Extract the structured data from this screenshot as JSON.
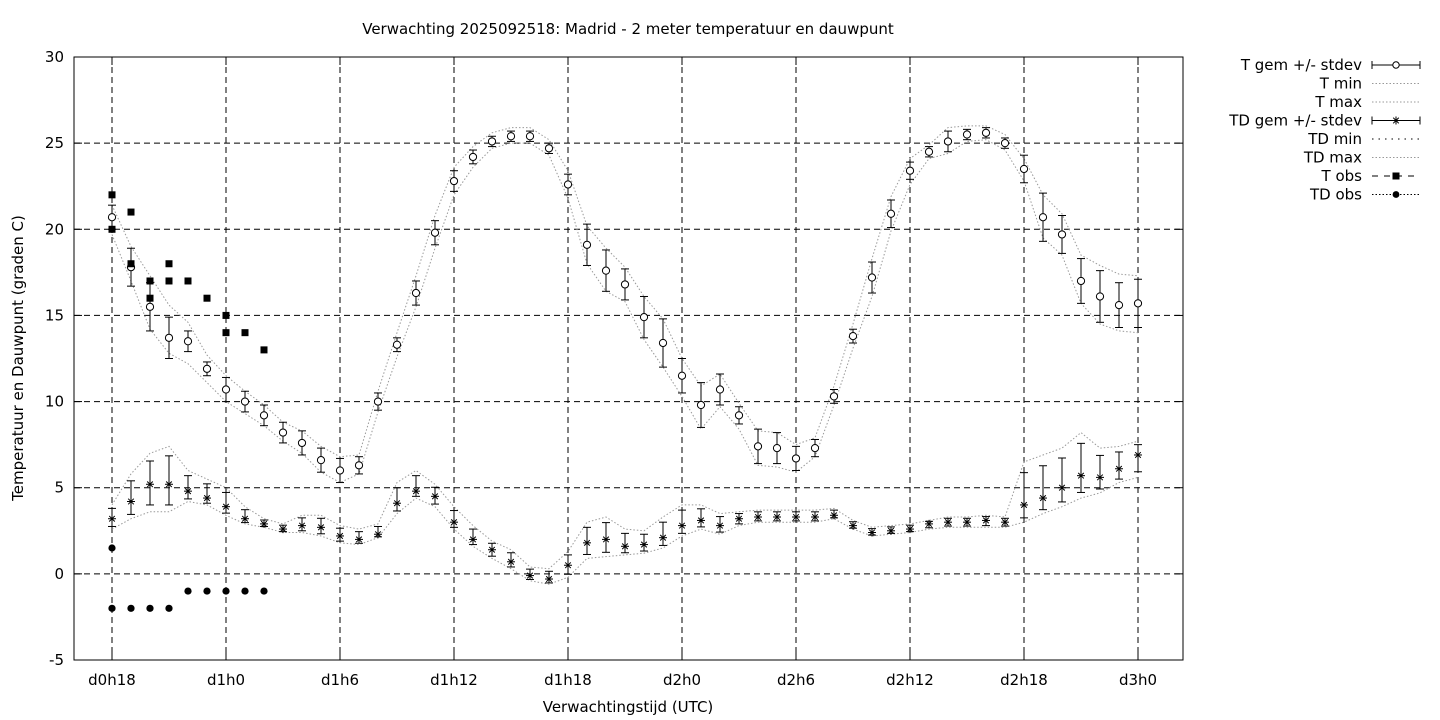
{
  "chart_data": {
    "type": "line",
    "title": "Verwachting 2025092518: Madrid - 2 meter temperatuur en dauwpunt",
    "xlabel": "Verwachtingstijd (UTC)",
    "ylabel": "Temperatuur en Dauwpunt (graden C)",
    "ylim": [
      -5,
      30
    ],
    "yticks": [
      -5,
      0,
      5,
      10,
      15,
      20,
      25,
      30
    ],
    "xlim": [
      0,
      56
    ],
    "xticks": [
      {
        "x": 0,
        "label": "d0h18"
      },
      {
        "x": 6,
        "label": "d1h0"
      },
      {
        "x": 12,
        "label": "d1h6"
      },
      {
        "x": 18,
        "label": "d1h12"
      },
      {
        "x": 24,
        "label": "d1h18"
      },
      {
        "x": 30,
        "label": "d2h0"
      },
      {
        "x": 36,
        "label": "d2h6"
      },
      {
        "x": 42,
        "label": "d2h12"
      },
      {
        "x": 48,
        "label": "d2h18"
      },
      {
        "x": 54,
        "label": "d3h0"
      }
    ],
    "grid": true,
    "legend_position": "outside-right-top",
    "x": [
      0,
      1,
      2,
      3,
      4,
      5,
      6,
      7,
      8,
      9,
      10,
      11,
      12,
      13,
      14,
      15,
      16,
      17,
      18,
      19,
      20,
      21,
      22,
      23,
      24,
      25,
      26,
      27,
      28,
      29,
      30,
      31,
      32,
      33,
      34,
      35,
      36,
      37,
      38,
      39,
      40,
      41,
      42,
      43,
      44,
      45,
      46,
      47,
      48,
      49,
      50,
      51,
      52,
      53,
      54
    ],
    "series": [
      {
        "name": "T gem +/- stdev",
        "marker": "circle",
        "values": [
          20.7,
          17.8,
          15.5,
          13.7,
          13.5,
          11.9,
          10.7,
          10.0,
          9.2,
          8.2,
          7.6,
          6.6,
          6.0,
          6.3,
          10.0,
          13.3,
          16.3,
          19.8,
          22.8,
          24.2,
          25.1,
          25.4,
          25.4,
          24.7,
          22.6,
          19.1,
          17.6,
          16.8,
          14.9,
          13.4,
          11.5,
          9.8,
          10.7,
          9.2,
          7.4,
          7.3,
          6.7,
          7.3,
          10.3,
          13.8,
          17.2,
          20.9,
          23.4,
          24.5,
          25.1,
          25.5,
          25.6,
          25.0,
          23.5,
          20.7,
          19.7,
          17.0,
          16.1,
          15.6,
          15.7
        ],
        "stdev": [
          0.7,
          1.1,
          1.4,
          1.2,
          0.6,
          0.4,
          0.7,
          0.6,
          0.6,
          0.6,
          0.7,
          0.7,
          0.7,
          0.5,
          0.5,
          0.4,
          0.7,
          0.7,
          0.6,
          0.4,
          0.3,
          0.3,
          0.3,
          0.3,
          0.6,
          1.2,
          1.2,
          0.9,
          1.2,
          1.4,
          1.0,
          1.3,
          0.9,
          0.5,
          1.0,
          0.9,
          0.7,
          0.5,
          0.4,
          0.4,
          0.9,
          0.8,
          0.5,
          0.3,
          0.6,
          0.3,
          0.3,
          0.3,
          0.8,
          1.4,
          1.1,
          1.3,
          1.5,
          1.3,
          1.4
        ]
      },
      {
        "name": "T min",
        "values": [
          19.7,
          17.0,
          14.2,
          12.8,
          12.2,
          11.1,
          10.0,
          9.3,
          8.6,
          7.7,
          7.0,
          5.9,
          5.3,
          5.8,
          9.4,
          12.6,
          15.5,
          18.9,
          22.0,
          23.6,
          24.7,
          25.0,
          25.0,
          24.3,
          21.8,
          18.0,
          16.4,
          15.8,
          13.6,
          12.0,
          10.3,
          8.4,
          9.7,
          8.4,
          6.3,
          6.2,
          5.9,
          6.8,
          9.8,
          13.1,
          16.1,
          19.9,
          22.6,
          24.1,
          24.4,
          25.1,
          25.2,
          24.6,
          22.8,
          19.5,
          18.5,
          15.7,
          14.5,
          14.1,
          14.0
        ]
      },
      {
        "name": "T max",
        "values": [
          21.4,
          19.0,
          17.3,
          15.6,
          14.6,
          12.7,
          11.5,
          10.6,
          9.8,
          8.8,
          8.3,
          7.4,
          6.8,
          6.9,
          10.6,
          14.0,
          17.3,
          20.8,
          23.6,
          24.8,
          25.6,
          25.9,
          25.9,
          25.2,
          23.4,
          20.2,
          18.9,
          17.8,
          16.1,
          14.8,
          12.5,
          10.9,
          11.6,
          9.9,
          8.3,
          8.2,
          7.5,
          7.9,
          10.9,
          14.5,
          18.3,
          21.9,
          24.1,
          24.9,
          25.9,
          26.0,
          26.0,
          25.5,
          24.1,
          22.0,
          20.9,
          18.5,
          17.9,
          17.4,
          17.3
        ]
      },
      {
        "name": "TD gem +/- stdev",
        "marker": "star",
        "values": [
          3.2,
          4.2,
          5.2,
          5.2,
          4.8,
          4.4,
          3.9,
          3.2,
          2.9,
          2.6,
          2.8,
          2.7,
          2.2,
          2.0,
          2.3,
          4.1,
          4.8,
          4.5,
          3.0,
          2.0,
          1.4,
          0.7,
          -0.1,
          -0.3,
          0.5,
          1.8,
          2.0,
          1.6,
          1.7,
          2.1,
          2.8,
          3.1,
          2.8,
          3.2,
          3.3,
          3.3,
          3.3,
          3.3,
          3.4,
          2.8,
          2.4,
          2.5,
          2.6,
          2.9,
          3.0,
          3.0,
          3.1,
          3.0,
          4.0,
          4.4,
          5.0,
          5.7,
          5.6,
          6.1,
          6.9
        ]
      },
      {
        "name": "TD min",
        "values": [
          2.6,
          3.2,
          3.6,
          3.6,
          4.2,
          4.0,
          3.4,
          2.9,
          2.7,
          2.4,
          2.4,
          2.2,
          1.8,
          1.7,
          2.1,
          3.5,
          4.4,
          3.9,
          2.6,
          1.6,
          0.9,
          0.3,
          -0.4,
          -0.6,
          -0.2,
          0.9,
          1.0,
          1.1,
          1.2,
          1.5,
          2.2,
          2.6,
          2.3,
          2.8,
          3.0,
          3.0,
          3.0,
          3.0,
          3.2,
          2.6,
          2.2,
          2.3,
          2.4,
          2.6,
          2.7,
          2.7,
          2.7,
          2.7,
          3.0,
          3.5,
          3.9,
          4.4,
          4.7,
          5.3,
          5.6
        ]
      },
      {
        "name": "TD max",
        "values": [
          4.0,
          5.8,
          7.0,
          7.4,
          6.0,
          5.5,
          5.0,
          3.9,
          3.2,
          2.9,
          3.4,
          3.4,
          2.8,
          2.6,
          2.9,
          5.3,
          6.0,
          5.2,
          3.9,
          2.8,
          1.9,
          1.4,
          0.4,
          0.3,
          1.3,
          3.0,
          3.3,
          2.6,
          2.5,
          3.3,
          4.0,
          4.0,
          3.5,
          3.6,
          3.7,
          3.7,
          3.7,
          3.7,
          3.8,
          3.1,
          2.7,
          2.8,
          2.9,
          3.1,
          3.3,
          3.3,
          3.4,
          3.3,
          6.5,
          6.9,
          7.3,
          8.2,
          7.3,
          7.4,
          7.7
        ]
      },
      {
        "name": "T obs",
        "marker": "square",
        "x": [
          0,
          0,
          1,
          1,
          2,
          2,
          3,
          3,
          4,
          5,
          6,
          6,
          7,
          8
        ],
        "values": [
          22,
          20,
          21,
          18,
          17,
          16,
          18,
          17,
          17,
          16,
          15,
          14,
          14,
          13
        ]
      },
      {
        "name": "TD obs",
        "marker": "dot",
        "x": [
          0,
          0,
          1,
          2,
          3,
          4,
          5,
          6,
          7,
          8
        ],
        "values": [
          1.5,
          -2,
          -2,
          -2,
          -2,
          -1,
          -1,
          -1,
          -1,
          -1
        ]
      }
    ]
  }
}
